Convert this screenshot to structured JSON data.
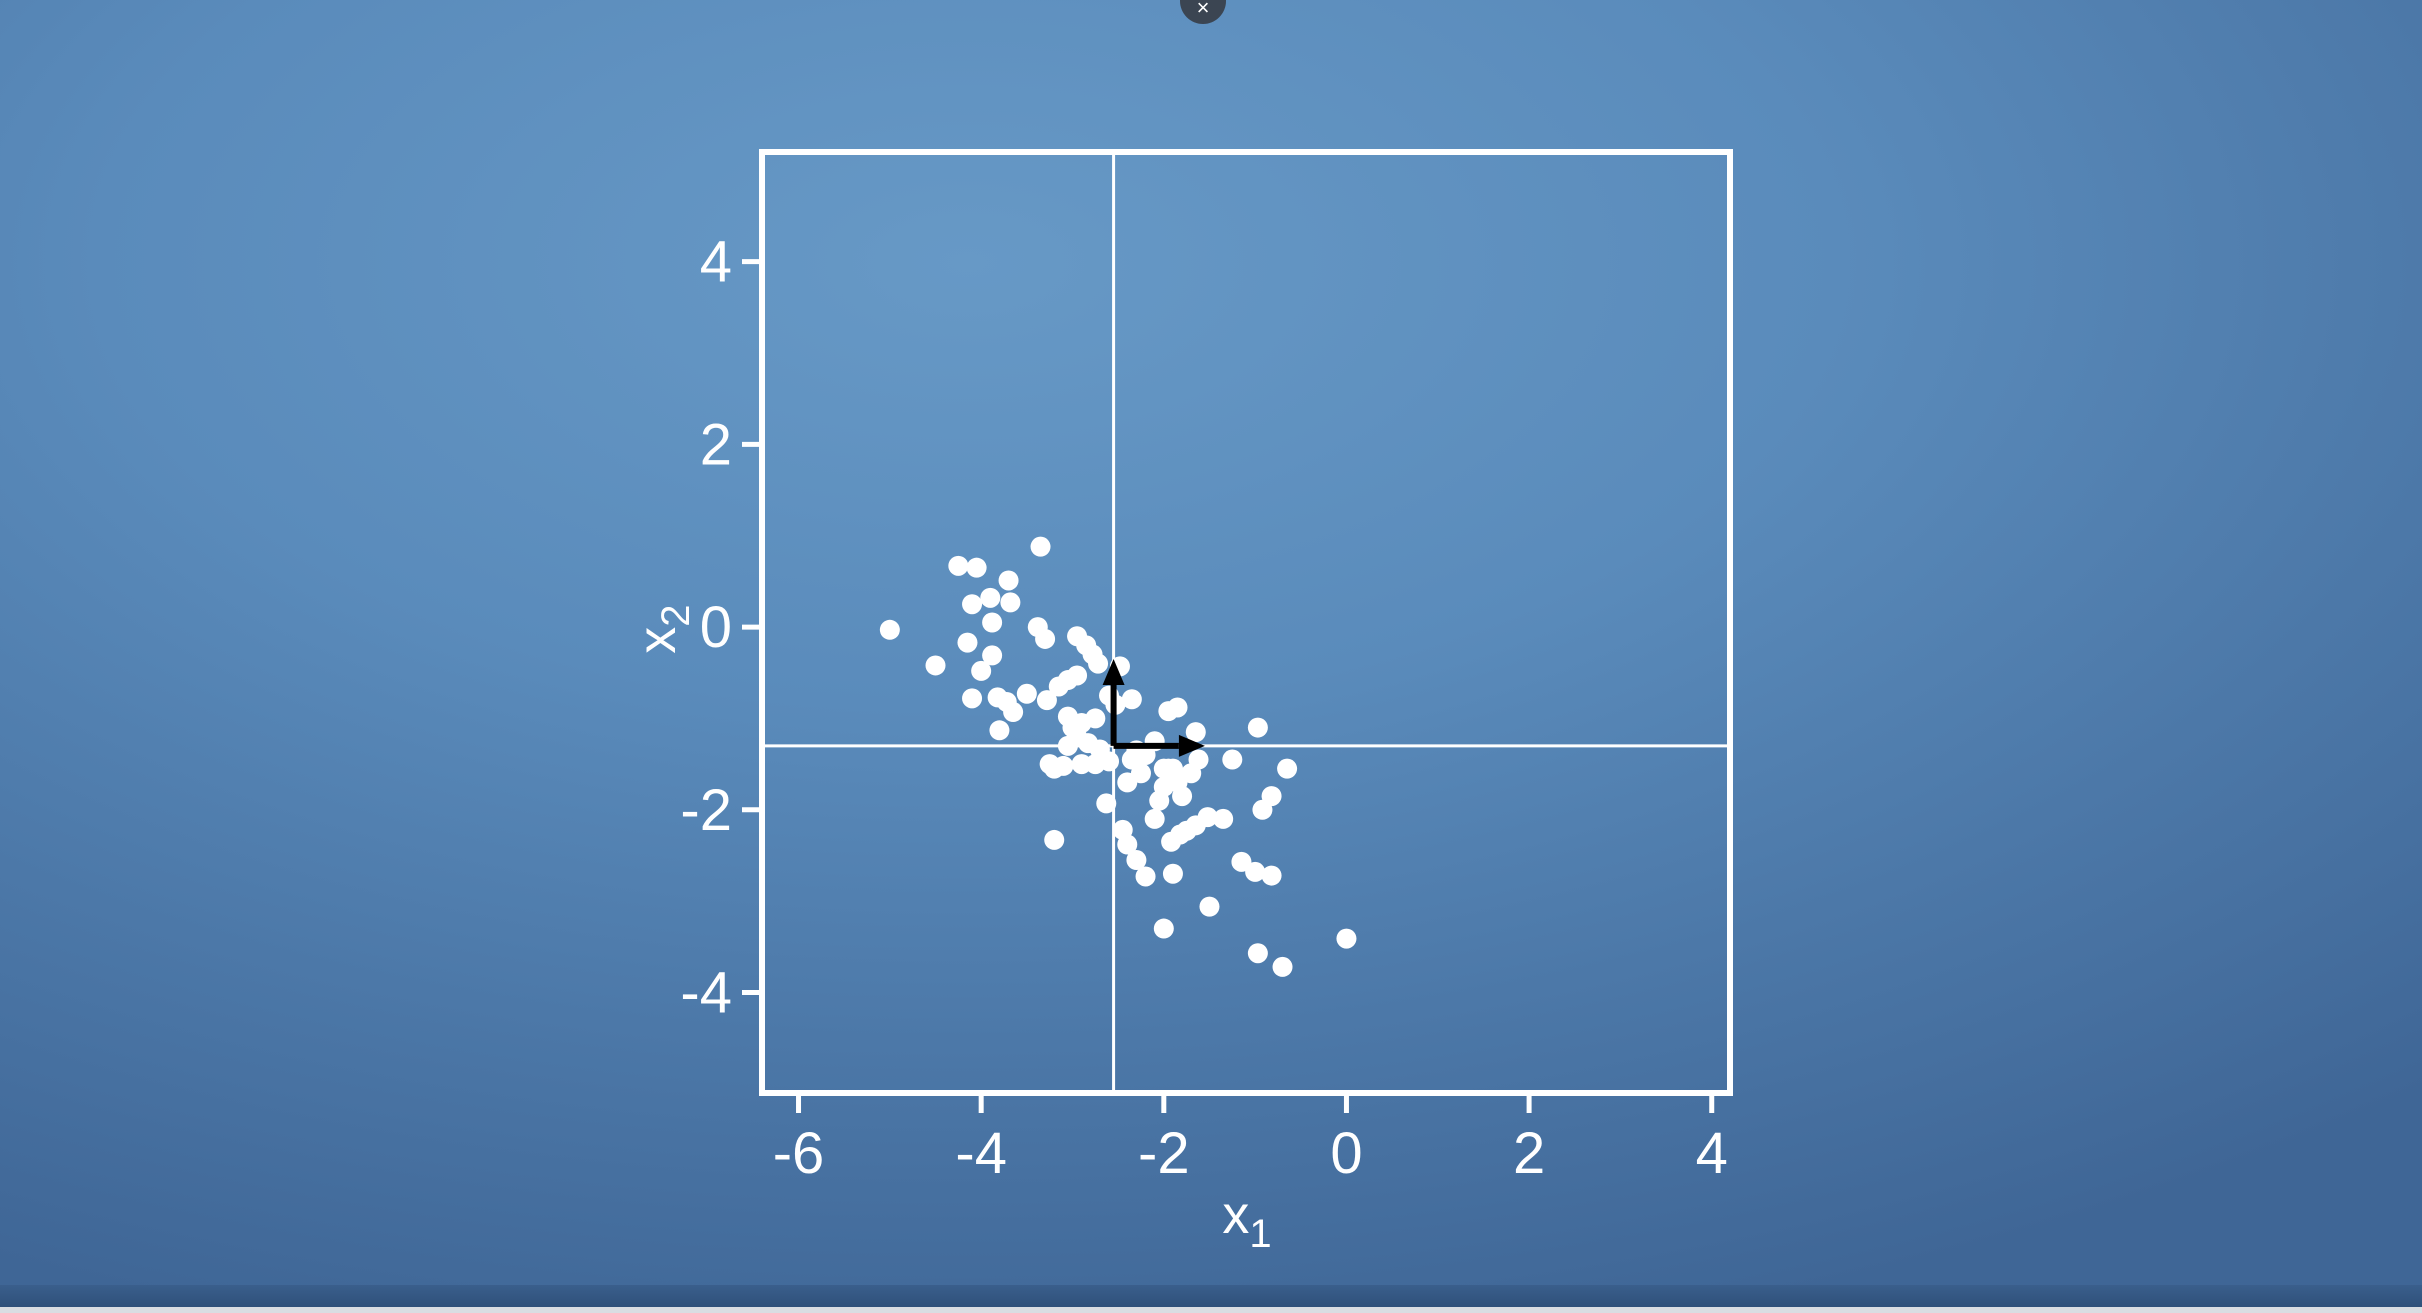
{
  "window": {
    "close_label": "×"
  },
  "colors": {
    "background": "#5a8bbb",
    "foreground": "#ffffff",
    "vector": "#000000"
  },
  "chart_data": {
    "type": "scatter",
    "xlabel": "x",
    "xlabel_sub": "1",
    "ylabel": "x",
    "ylabel_sub": "2",
    "xlim": [
      -6.4,
      4.2
    ],
    "ylim": [
      -5.1,
      5.2
    ],
    "xticks": [
      -6,
      -4,
      -2,
      0,
      2,
      4
    ],
    "xtick_labels": [
      "-6",
      "-4",
      "-2",
      "0",
      "2",
      "4"
    ],
    "yticks": [
      4,
      2,
      0,
      -2,
      -4
    ],
    "ytick_labels": [
      "4",
      "2",
      "0",
      "-2",
      "-4"
    ],
    "grid": false,
    "reference_lines": {
      "x": -2.55,
      "y": -1.3
    },
    "vectors": [
      {
        "from": [
          -2.55,
          -1.3
        ],
        "to": [
          -1.55,
          -1.3
        ]
      },
      {
        "from": [
          -2.55,
          -1.3
        ],
        "to": [
          -2.55,
          -0.35
        ]
      }
    ],
    "points": [
      [
        -5.0,
        -0.03
      ],
      [
        -4.5,
        -0.42
      ],
      [
        -4.25,
        0.67
      ],
      [
        -4.05,
        0.65
      ],
      [
        -4.15,
        -0.17
      ],
      [
        -4.1,
        0.25
      ],
      [
        -3.9,
        0.32
      ],
      [
        -3.88,
        0.05
      ],
      [
        -3.7,
        0.51
      ],
      [
        -3.68,
        0.27
      ],
      [
        -3.35,
        0.88
      ],
      [
        -3.38,
        0.0
      ],
      [
        -3.3,
        -0.13
      ],
      [
        -4.0,
        -0.48
      ],
      [
        -3.88,
        -0.31
      ],
      [
        -4.1,
        -0.78
      ],
      [
        -3.82,
        -0.77
      ],
      [
        -3.72,
        -0.82
      ],
      [
        -3.65,
        -0.93
      ],
      [
        -3.8,
        -1.13
      ],
      [
        -3.5,
        -0.73
      ],
      [
        -3.28,
        -0.8
      ],
      [
        -3.15,
        -0.65
      ],
      [
        -3.05,
        -0.58
      ],
      [
        -2.95,
        -0.53
      ],
      [
        -2.95,
        -0.1
      ],
      [
        -2.85,
        -0.2
      ],
      [
        -2.78,
        -0.3
      ],
      [
        -2.72,
        -0.4
      ],
      [
        -2.48,
        -0.43
      ],
      [
        -2.35,
        -0.79
      ],
      [
        -2.53,
        -0.85
      ],
      [
        -2.6,
        -0.75
      ],
      [
        -2.75,
        -1.0
      ],
      [
        -2.9,
        -1.05
      ],
      [
        -3.05,
        -0.98
      ],
      [
        -3.0,
        -1.1
      ],
      [
        -3.05,
        -1.3
      ],
      [
        -2.95,
        -1.2
      ],
      [
        -2.83,
        -1.27
      ],
      [
        -2.7,
        -1.34
      ],
      [
        -2.75,
        -1.5
      ],
      [
        -2.6,
        -1.47
      ],
      [
        -2.9,
        -1.5
      ],
      [
        -3.1,
        -1.52
      ],
      [
        -3.2,
        -1.55
      ],
      [
        -3.25,
        -1.5
      ],
      [
        -2.63,
        -1.93
      ],
      [
        -2.45,
        -2.22
      ],
      [
        -2.4,
        -2.38
      ],
      [
        -2.3,
        -2.55
      ],
      [
        -2.2,
        -2.73
      ],
      [
        -2.1,
        -2.1
      ],
      [
        -2.05,
        -1.9
      ],
      [
        -2.0,
        -1.75
      ],
      [
        -1.95,
        -1.55
      ],
      [
        -1.9,
        -1.55
      ],
      [
        -1.85,
        -1.7
      ],
      [
        -1.8,
        -1.85
      ],
      [
        -1.7,
        -1.6
      ],
      [
        -1.62,
        -1.45
      ],
      [
        -1.65,
        -1.15
      ],
      [
        -1.85,
        -0.88
      ],
      [
        -1.95,
        -0.92
      ],
      [
        -2.1,
        -1.25
      ],
      [
        -2.2,
        -1.4
      ],
      [
        -2.35,
        -1.45
      ],
      [
        -2.25,
        -1.6
      ],
      [
        -2.4,
        -1.7
      ],
      [
        -2.3,
        -1.35
      ],
      [
        -2.0,
        -1.55
      ],
      [
        -1.92,
        -2.35
      ],
      [
        -1.82,
        -2.27
      ],
      [
        -1.75,
        -2.23
      ],
      [
        -1.65,
        -2.17
      ],
      [
        -1.52,
        -2.08
      ],
      [
        -1.35,
        -2.1
      ],
      [
        -1.25,
        -1.45
      ],
      [
        -1.15,
        -2.57
      ],
      [
        -1.0,
        -2.68
      ],
      [
        -0.97,
        -1.1
      ],
      [
        -0.82,
        -1.85
      ],
      [
        -0.92,
        -2.0
      ],
      [
        -0.82,
        -2.72
      ],
      [
        -0.65,
        -1.55
      ],
      [
        -1.9,
        -2.7
      ],
      [
        -1.5,
        -3.06
      ],
      [
        -2.0,
        -3.3
      ],
      [
        -0.97,
        -3.57
      ],
      [
        -0.7,
        -3.72
      ],
      [
        0.0,
        -3.41
      ],
      [
        -3.2,
        -2.33
      ]
    ]
  }
}
